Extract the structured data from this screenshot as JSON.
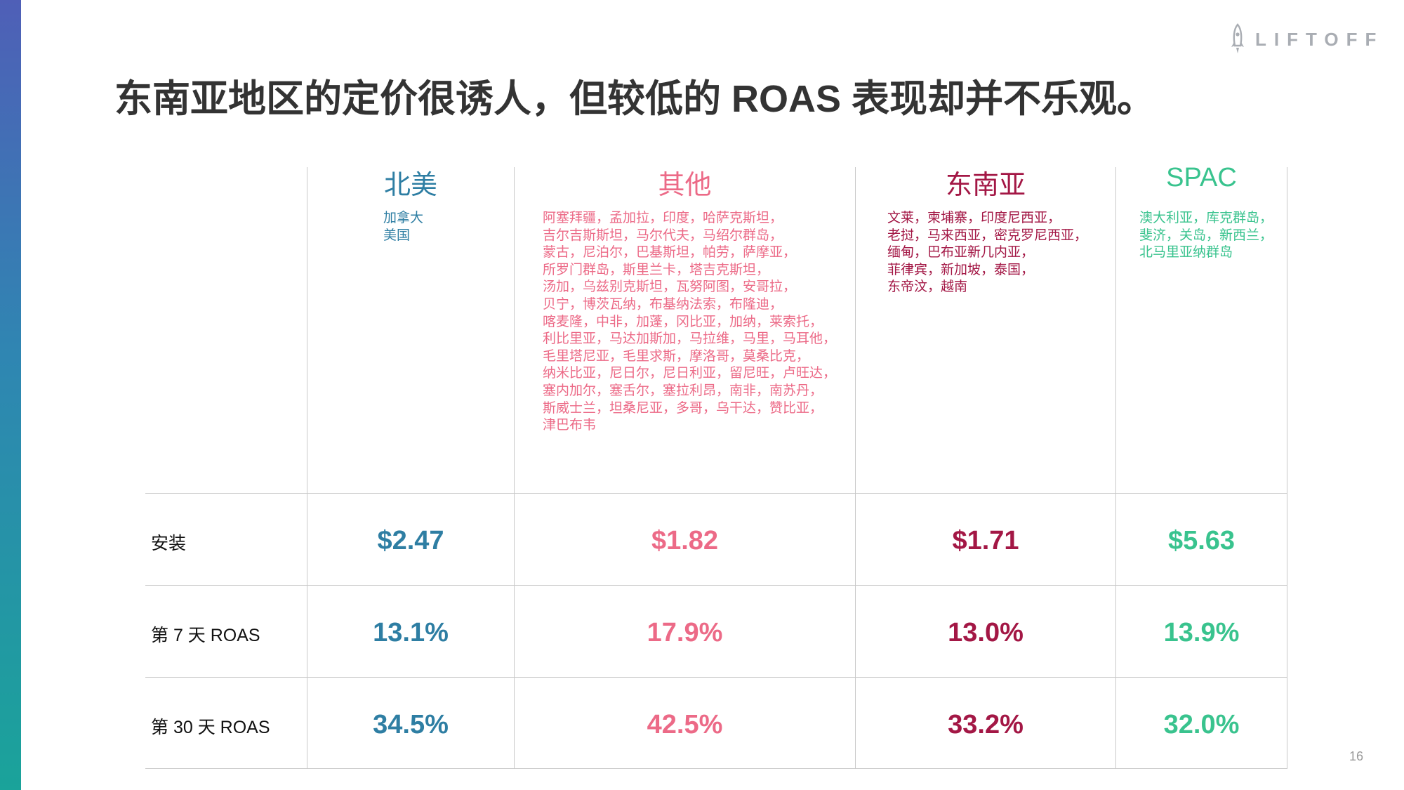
{
  "brand": {
    "logo_text": "LIFTOFF",
    "logo_icon": "rocket-icon"
  },
  "title": "东南亚地区的定价很诱人，但较低的 ROAS 表现却并不乐观。",
  "page_number": "16",
  "colors": {
    "north_america": "#2e7ea3",
    "other": "#ec6a87",
    "southeast_asia": "#a31745",
    "spac": "#39c38e"
  },
  "regions": [
    {
      "name": "北美",
      "countries": "加拿大\n美国"
    },
    {
      "name": "其他",
      "countries": "阿塞拜疆，孟加拉，印度，哈萨克斯坦，\n吉尔吉斯斯坦，马尔代夫，马绍尔群岛，\n蒙古，尼泊尔，巴基斯坦，帕劳，萨摩亚，\n所罗门群岛，斯里兰卡，塔吉克斯坦，\n汤加，乌兹别克斯坦，瓦努阿图，安哥拉，\n贝宁，博茨瓦纳，布基纳法索，布隆迪，\n喀麦隆，中非，加蓬，冈比亚，加纳，莱索托，\n利比里亚，马达加斯加，马拉维，马里，马耳他，\n毛里塔尼亚，毛里求斯，摩洛哥，莫桑比克，\n纳米比亚，尼日尔，尼日利亚，留尼旺，卢旺达，\n塞内加尔，塞舌尔，塞拉利昂，南非，南苏丹，\n斯威士兰，坦桑尼亚，多哥，乌干达，赞比亚，\n津巴布韦"
    },
    {
      "name": "东南亚",
      "countries": "文莱，柬埔寨，印度尼西亚，\n老挝，马来西亚，密克罗尼西亚，\n缅甸，巴布亚新几内亚，\n菲律宾，新加坡，泰国，\n东帝汶，越南"
    },
    {
      "name": "SPAC",
      "countries": "澳大利亚，库克群岛，\n斐济，关岛，新西兰，\n北马里亚纳群岛"
    }
  ],
  "rows": [
    {
      "label": "安装",
      "values": [
        "$2.47",
        "$1.82",
        "$1.71",
        "$5.63"
      ]
    },
    {
      "label": "第 7 天 ROAS",
      "values": [
        "13.1%",
        "17.9%",
        "13.0%",
        "13.9%"
      ]
    },
    {
      "label": "第 30 天 ROAS",
      "values": [
        "34.5%",
        "42.5%",
        "33.2%",
        "32.0%"
      ]
    }
  ]
}
